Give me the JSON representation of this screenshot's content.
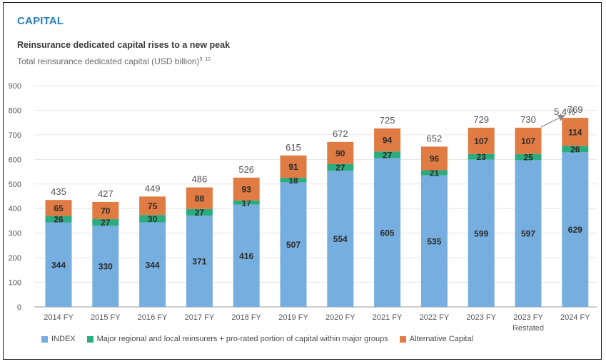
{
  "section": "CAPITAL",
  "colors": {
    "index": "#76aedf",
    "major": "#2bac7f",
    "alt": "#e07b43",
    "grid": "#e6e6e6",
    "axis": "#9a9a9a"
  },
  "chart_data": {
    "type": "bar",
    "stacked": true,
    "title": "Reinsurance dedicated capital rises to a new peak",
    "subtitle": "Total reinsurance dedicated capital (USD billion)",
    "subtitle_sup": "9, 10",
    "ylim": [
      0,
      900
    ],
    "yticks": [
      "0",
      "100",
      "200",
      "300",
      "400",
      "500",
      "600",
      "700",
      "800",
      "900"
    ],
    "categories": [
      "2014 FY",
      "2015 FY",
      "2016 FY",
      "2017 FY",
      "2018 FY",
      "2019 FY",
      "2020 FY",
      "2021 FY",
      "2022 FY",
      "2023 FY",
      "2023 FY Restated",
      "2024 FY"
    ],
    "category_lines": [
      [
        "2014 FY"
      ],
      [
        "2015 FY"
      ],
      [
        "2016 FY"
      ],
      [
        "2017 FY"
      ],
      [
        "2018 FY"
      ],
      [
        "2019 FY"
      ],
      [
        "2020 FY"
      ],
      [
        "2021 FY"
      ],
      [
        "2022 FY"
      ],
      [
        "2023 FY"
      ],
      [
        "2023 FY",
        "Restated"
      ],
      [
        "2024 FY"
      ]
    ],
    "series": [
      {
        "name": "INDEX",
        "values": [
          344,
          330,
          344,
          371,
          416,
          507,
          554,
          605,
          535,
          599,
          597,
          629
        ]
      },
      {
        "name": "Major regional and local reinsurers + pro-rated portion of capital within major groups",
        "values": [
          26,
          27,
          30,
          27,
          17,
          18,
          27,
          27,
          21,
          23,
          25,
          26
        ]
      },
      {
        "name": "Alternative Capital",
        "values": [
          65,
          70,
          75,
          88,
          93,
          91,
          90,
          94,
          96,
          107,
          107,
          114
        ]
      }
    ],
    "totals": [
      435,
      427,
      449,
      486,
      526,
      615,
      672,
      725,
      652,
      729,
      730,
      769
    ],
    "annotation": "5.4%",
    "grid": true,
    "legend_position": "bottom-left"
  }
}
